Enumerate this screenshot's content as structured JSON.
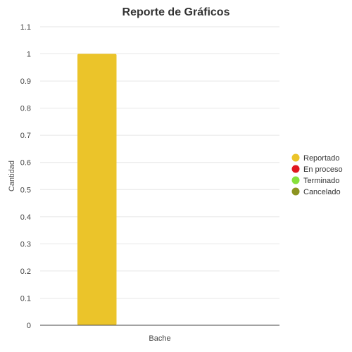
{
  "chart_data": {
    "type": "bar",
    "title": "Reporte de Gráficos",
    "xlabel": "",
    "ylabel": "Cantidad",
    "categories": [
      "Bache"
    ],
    "ylim": [
      0,
      1.1
    ],
    "yticks": [
      "0",
      "0.1",
      "0.2",
      "0.3",
      "0.4",
      "0.5",
      "0.6",
      "0.7",
      "0.8",
      "0.9",
      "1",
      "1.1"
    ],
    "grid": true,
    "legend_position": "right",
    "series": [
      {
        "name": "Reportado",
        "color": "#ebc42a",
        "values": [
          1
        ]
      },
      {
        "name": "En proceso",
        "color": "#e0171f",
        "values": [
          0
        ]
      },
      {
        "name": "Terminado",
        "color": "#86e03a",
        "values": [
          0
        ]
      },
      {
        "name": "Cancelado",
        "color": "#8c9320",
        "values": [
          0
        ]
      }
    ]
  }
}
